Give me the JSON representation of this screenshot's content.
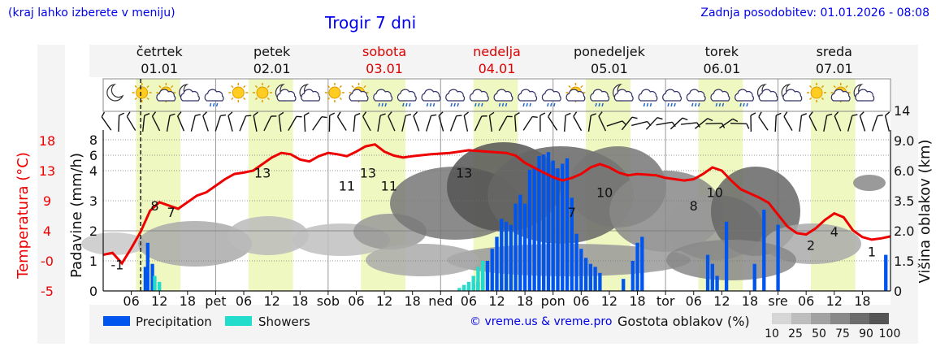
{
  "header": {
    "hint": "(kraj lahko izberete v meniju)",
    "title": "Trogir 7 dni",
    "updated": "Zadnja posodobitev: 01.01.2026 - 08:08"
  },
  "days": [
    {
      "name": "četrtek",
      "date": "01.01",
      "weekend": false,
      "short": ""
    },
    {
      "name": "petek",
      "date": "02.01",
      "weekend": false,
      "short": "pet"
    },
    {
      "name": "sobota",
      "date": "03.01",
      "weekend": true,
      "short": "sob"
    },
    {
      "name": "nedelja",
      "date": "04.01",
      "weekend": true,
      "short": "ned"
    },
    {
      "name": "ponedeljek",
      "date": "05.01",
      "weekend": false,
      "short": "pon"
    },
    {
      "name": "torek",
      "date": "06.01",
      "weekend": false,
      "short": "tor"
    },
    {
      "name": "sreda",
      "date": "07.01",
      "weekend": false,
      "short": "sre"
    }
  ],
  "colors": {
    "temperature": "#ee0000",
    "precipitation": "#0055ee",
    "showers": "#22ddcc",
    "daylight": "#eef8c0",
    "link": "#0000ee",
    "weekend": "#dd0000"
  },
  "legend": {
    "precipitation_label": "Precipitation",
    "showers_label": "Showers",
    "credits": "© vreme.us & vreme.pro",
    "cloud_title": "Gostota oblakov (%)",
    "cloud_levels": [
      "10",
      "25",
      "50",
      "75",
      "90",
      "100"
    ]
  },
  "chart_data": {
    "type": "line",
    "title": "Trogir 7 dni",
    "x_unit": "hours from 01.01 00:00",
    "x_range": [
      0,
      168
    ],
    "now_hour": 8,
    "x_ticks": [
      {
        "h": 6,
        "label": "06"
      },
      {
        "h": 12,
        "label": "12"
      },
      {
        "h": 18,
        "label": "18"
      },
      {
        "h": 24,
        "label": "pet"
      },
      {
        "h": 30,
        "label": "06"
      },
      {
        "h": 36,
        "label": "12"
      },
      {
        "h": 42,
        "label": "18"
      },
      {
        "h": 48,
        "label": "sob"
      },
      {
        "h": 54,
        "label": "06"
      },
      {
        "h": 60,
        "label": "12"
      },
      {
        "h": 66,
        "label": "18"
      },
      {
        "h": 72,
        "label": "ned"
      },
      {
        "h": 78,
        "label": "06"
      },
      {
        "h": 84,
        "label": "12"
      },
      {
        "h": 90,
        "label": "18"
      },
      {
        "h": 96,
        "label": "pon"
      },
      {
        "h": 102,
        "label": "06"
      },
      {
        "h": 108,
        "label": "12"
      },
      {
        "h": 114,
        "label": "18"
      },
      {
        "h": 120,
        "label": "tor"
      },
      {
        "h": 126,
        "label": "06"
      },
      {
        "h": 132,
        "label": "12"
      },
      {
        "h": 138,
        "label": "18"
      },
      {
        "h": 144,
        "label": "sre"
      },
      {
        "h": 150,
        "label": "06"
      },
      {
        "h": 156,
        "label": "12"
      },
      {
        "h": 162,
        "label": "18"
      }
    ],
    "left_axis_precip": {
      "label": "Padavine (mm/h)",
      "ticks": [
        "0",
        "1",
        "2",
        "3",
        "4",
        "6",
        "8"
      ]
    },
    "temp_axis": {
      "label": "Temperatura (°C)",
      "ticks": [
        "-5",
        "-0",
        "4",
        "9",
        "13",
        "18"
      ],
      "range": [
        -5,
        18
      ]
    },
    "right_axis": {
      "label": "Višina oblakov (km)",
      "ticks": [
        "0",
        "1.5",
        "2.0",
        "3.5",
        "6.0",
        "9.0",
        "14"
      ]
    },
    "temperature": [
      [
        0,
        0.5
      ],
      [
        2,
        0.8
      ],
      [
        4,
        -0.8
      ],
      [
        6,
        1.5
      ],
      [
        8,
        4
      ],
      [
        10,
        7.2
      ],
      [
        12,
        8.5
      ],
      [
        14,
        8
      ],
      [
        16,
        7.5
      ],
      [
        18,
        8.5
      ],
      [
        20,
        9.5
      ],
      [
        22,
        10
      ],
      [
        24,
        11
      ],
      [
        26,
        12
      ],
      [
        28,
        12.8
      ],
      [
        30,
        13
      ],
      [
        32,
        13.3
      ],
      [
        34,
        14.3
      ],
      [
        36,
        15.3
      ],
      [
        38,
        16
      ],
      [
        40,
        15.8
      ],
      [
        42,
        15
      ],
      [
        44,
        14.7
      ],
      [
        46,
        15.5
      ],
      [
        48,
        16
      ],
      [
        50,
        15.8
      ],
      [
        52,
        15.5
      ],
      [
        54,
        16.2
      ],
      [
        56,
        17
      ],
      [
        58,
        17.3
      ],
      [
        60,
        16.2
      ],
      [
        62,
        15.6
      ],
      [
        64,
        15.3
      ],
      [
        66,
        15.5
      ],
      [
        70,
        15.8
      ],
      [
        74,
        16
      ],
      [
        78,
        16.4
      ],
      [
        82,
        16.2
      ],
      [
        86,
        16
      ],
      [
        88,
        15.6
      ],
      [
        90,
        14.5
      ],
      [
        94,
        13
      ],
      [
        96,
        12.3
      ],
      [
        98,
        11.8
      ],
      [
        100,
        12.2
      ],
      [
        102,
        12.8
      ],
      [
        104,
        13.8
      ],
      [
        106,
        14.3
      ],
      [
        108,
        13.8
      ],
      [
        110,
        13
      ],
      [
        112,
        12.6
      ],
      [
        114,
        12.8
      ],
      [
        118,
        12.6
      ],
      [
        120,
        12.2
      ],
      [
        124,
        11.8
      ],
      [
        126,
        12
      ],
      [
        128,
        12.8
      ],
      [
        130,
        13.8
      ],
      [
        132,
        13.3
      ],
      [
        134,
        11.8
      ],
      [
        136,
        10.5
      ],
      [
        140,
        9.2
      ],
      [
        142,
        8.4
      ],
      [
        144,
        6.6
      ],
      [
        146,
        4.8
      ],
      [
        148,
        3.8
      ],
      [
        150,
        3.6
      ],
      [
        152,
        4.5
      ],
      [
        154,
        5.8
      ],
      [
        156,
        6.8
      ],
      [
        158,
        6.2
      ],
      [
        160,
        4.2
      ],
      [
        162,
        3.2
      ],
      [
        164,
        2.8
      ],
      [
        166,
        3
      ],
      [
        168,
        3.3
      ]
    ],
    "temp_labels": [
      {
        "h": 3,
        "v": -1,
        "label": "-1"
      },
      {
        "h": 11,
        "v": 8,
        "label": "8"
      },
      {
        "h": 14.5,
        "v": 7,
        "label": "7"
      },
      {
        "h": 34,
        "v": 13,
        "label": "13"
      },
      {
        "h": 52,
        "v": 11,
        "label": "11"
      },
      {
        "h": 56.5,
        "v": 13,
        "label": "13"
      },
      {
        "h": 61,
        "v": 11,
        "label": "11"
      },
      {
        "h": 77,
        "v": 13,
        "label": "13"
      },
      {
        "h": 100,
        "v": 7,
        "label": "7"
      },
      {
        "h": 107,
        "v": 10,
        "label": "10"
      },
      {
        "h": 126,
        "v": 8,
        "label": "8"
      },
      {
        "h": 130.5,
        "v": 10,
        "label": "10"
      },
      {
        "h": 151,
        "v": 2,
        "label": "2"
      },
      {
        "h": 156,
        "v": 4,
        "label": "4"
      },
      {
        "h": 164,
        "v": 1,
        "label": "1"
      }
    ],
    "precipitation": [
      [
        9,
        0.8
      ],
      [
        9.5,
        1.6
      ],
      [
        10.5,
        0.9
      ],
      [
        78,
        0.1
      ],
      [
        79,
        0.2
      ],
      [
        80,
        0.3
      ],
      [
        81,
        0.6
      ],
      [
        82,
        1.0
      ],
      [
        83,
        1.4
      ],
      [
        84,
        1.8
      ],
      [
        85,
        2.4
      ],
      [
        86,
        2.3
      ],
      [
        87,
        2.2
      ],
      [
        88,
        2.9
      ],
      [
        89,
        3.2
      ],
      [
        90,
        2.9
      ],
      [
        91,
        4.1
      ],
      [
        92,
        4.4
      ],
      [
        93,
        5.9
      ],
      [
        94,
        6.1
      ],
      [
        95,
        6.4
      ],
      [
        96,
        5.3
      ],
      [
        97,
        4.3
      ],
      [
        98,
        4.9
      ],
      [
        99,
        5.6
      ],
      [
        100,
        3.1
      ],
      [
        101,
        1.9
      ],
      [
        102,
        1.4
      ],
      [
        103,
        1.1
      ],
      [
        104,
        0.9
      ],
      [
        105,
        0.8
      ],
      [
        106,
        0.6
      ],
      [
        111,
        0.4
      ],
      [
        113,
        1.0
      ],
      [
        114,
        1.6
      ],
      [
        115,
        1.8
      ],
      [
        129,
        1.2
      ],
      [
        130,
        0.9
      ],
      [
        131,
        0.5
      ],
      [
        133,
        2.3
      ],
      [
        139,
        0.9
      ],
      [
        141,
        2.7
      ],
      [
        144,
        2.2
      ],
      [
        167,
        1.2
      ]
    ],
    "showers": [
      [
        11,
        0.5
      ],
      [
        12,
        0.3
      ],
      [
        76,
        0.1
      ],
      [
        77,
        0.2
      ],
      [
        78,
        0.3
      ],
      [
        79,
        0.5
      ],
      [
        80,
        0.8
      ],
      [
        81,
        1.0
      ]
    ]
  }
}
